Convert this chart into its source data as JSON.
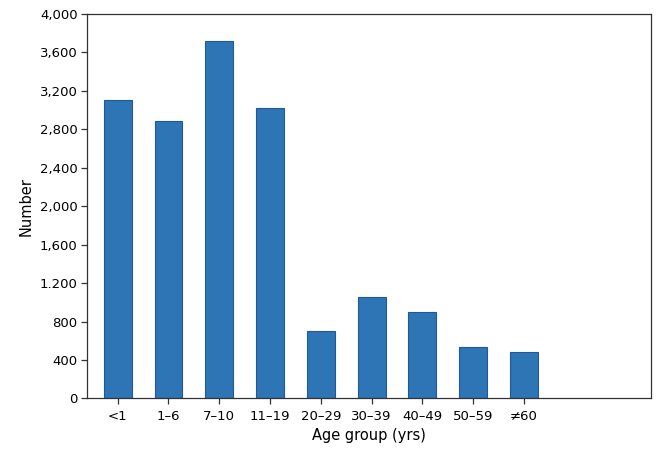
{
  "categories": [
    "<1",
    "1–6",
    "7–10",
    "11–19",
    "20–29",
    "30–39",
    "40–49",
    "50–59",
    "≠60"
  ],
  "values": [
    3100,
    2880,
    3720,
    3020,
    700,
    1050,
    900,
    530,
    480
  ],
  "bar_color": "#2e75b6",
  "bar_edgecolor": "#1e5a96",
  "ylabel": "Number",
  "xlabel": "Age group (yrs)",
  "ylim": [
    0,
    4000
  ],
  "yticks": [
    0,
    400,
    800,
    1200,
    1600,
    2000,
    2400,
    2800,
    3200,
    3600,
    4000
  ],
  "ytick_labels": [
    "0",
    "400",
    "800",
    "1,200",
    "1,600",
    "2,000",
    "2,400",
    "2,800",
    "3,200",
    "3,600",
    "4,000"
  ],
  "background_color": "#ffffff",
  "figsize": [
    6.71,
    4.58
  ],
  "dpi": 100,
  "bar_width": 0.55
}
